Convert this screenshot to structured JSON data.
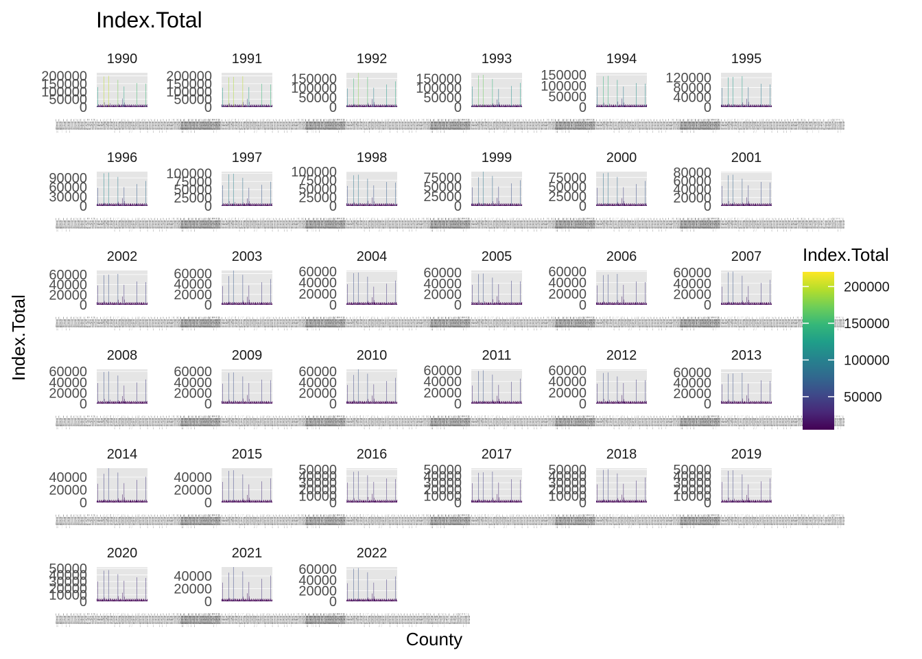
{
  "chart_data": {
    "type": "bar",
    "title": "Index.Total",
    "xlabel": "County",
    "ylabel": "Index.Total",
    "facet_by": "year",
    "facet_columns": 6,
    "x_categories_note": "",
    "x_tick_label_text": "Cayuga Chautauqua Chemung Chenango Clinton Columbia Cortland Delaware Dutchess Erie Essex Franklin Fulton Genesee Greene Hamilton Herkimer Jefferson Kings Lewis Livingston Madison Monroe Montgomery Nassau New York Niagara Oneida Onondaga Ontario Orange Orleans Oswego Otsego Putnam Queens Rensselaer Richmond Rockland Saratoga Schenectady Schoharie Schuyler Seneca St. Lawrence Steuben Suffolk Sullivan Tioga Tompkins Ulster",
    "legend": {
      "title": "Index.Total",
      "type": "continuous",
      "palette": "viridis",
      "min": 5000,
      "max": 220000,
      "ticks": [
        "50000",
        "100000",
        "150000",
        "200000"
      ],
      "tick_values": [
        50000,
        100000,
        150000,
        200000
      ],
      "position": "right"
    },
    "bar_profile": [
      0.02,
      0.02,
      0.02,
      0.6,
      0.02,
      0.02,
      0.02,
      0.02,
      0.02,
      0.02,
      0.02,
      0.02,
      0.02,
      0.02,
      0.02,
      0.02,
      0.02,
      0.02,
      0.02,
      0.02,
      0.02,
      0.02,
      0.95,
      0.08,
      0.02,
      0.02,
      0.02,
      0.02,
      0.02,
      0.02,
      0.02,
      0.02,
      0.02,
      0.02,
      0.02,
      0.02,
      1.0,
      0.02,
      0.02,
      0.02,
      0.02,
      0.05,
      0.02,
      0.02,
      0.02,
      0.02,
      0.02,
      0.02,
      0.02,
      0.02,
      0.02,
      0.02,
      0.02,
      0.02,
      0.02,
      0.02,
      0.02,
      0.02,
      0.02,
      0.02,
      0.02,
      0.02,
      0.02,
      0.02,
      0.02,
      0.9,
      0.1,
      0.02,
      0.02,
      0.02,
      0.02,
      0.02,
      0.02,
      0.02,
      0.02,
      0.02,
      0.02,
      0.02,
      0.02,
      0.25,
      0.02,
      0.02,
      0.02,
      0.02,
      0.6,
      0.15,
      0.02,
      0.02,
      0.02,
      0.02,
      0.02,
      0.02,
      0.02,
      0.02,
      0.02,
      0.02,
      0.02,
      0.02,
      0.02,
      0.02,
      0.02,
      0.02,
      0.02,
      0.02,
      0.02,
      0.02,
      0.02,
      0.02,
      0.02,
      0.02,
      0.02,
      0.02,
      0.02,
      0.02,
      0.02,
      0.02,
      0.02,
      0.02,
      0.02,
      0.02,
      0.02,
      0.02,
      0.02,
      0.02,
      0.7,
      0.02,
      0.02,
      0.02,
      0.02,
      0.02,
      0.02,
      0.02,
      0.02,
      0.02,
      0.02,
      0.02,
      0.02,
      0.02,
      0.02,
      0.02,
      0.02,
      0.02,
      0.02,
      0.02,
      0.02,
      0.02,
      0.02,
      0.02,
      0.02,
      0.02,
      0.02,
      0.75,
      0.02,
      0.02,
      0.02,
      0.02,
      0.02
    ],
    "facets": [
      {
        "year": "1990",
        "max": 220000,
        "ticks": [
          "0",
          "50000",
          "100000",
          "150000",
          "200000"
        ],
        "tick_values": [
          0,
          50000,
          100000,
          150000,
          200000
        ]
      },
      {
        "year": "1991",
        "max": 220000,
        "ticks": [
          "0",
          "50000",
          "100000",
          "150000",
          "200000"
        ],
        "tick_values": [
          0,
          50000,
          100000,
          150000,
          200000
        ]
      },
      {
        "year": "1992",
        "max": 180000,
        "ticks": [
          "0",
          "50000",
          "100000",
          "150000"
        ],
        "tick_values": [
          0,
          50000,
          100000,
          150000
        ]
      },
      {
        "year": "1993",
        "max": 180000,
        "ticks": [
          "0",
          "50000",
          "100000",
          "150000"
        ],
        "tick_values": [
          0,
          50000,
          100000,
          150000
        ]
      },
      {
        "year": "1994",
        "max": 160000,
        "ticks": [
          "0",
          "50000",
          "100000",
          "150000"
        ],
        "tick_values": [
          0,
          50000,
          100000,
          150000
        ]
      },
      {
        "year": "1995",
        "max": 140000,
        "ticks": [
          "0",
          "40000",
          "80000",
          "120000"
        ],
        "tick_values": [
          0,
          40000,
          80000,
          120000
        ]
      },
      {
        "year": "1996",
        "max": 110000,
        "ticks": [
          "0",
          "30000",
          "60000",
          "90000"
        ],
        "tick_values": [
          0,
          30000,
          60000,
          90000
        ]
      },
      {
        "year": "1997",
        "max": 105000,
        "ticks": [
          "0",
          "25000",
          "50000",
          "75000",
          "100000"
        ],
        "tick_values": [
          0,
          25000,
          50000,
          75000,
          100000
        ]
      },
      {
        "year": "1998",
        "max": 100000,
        "ticks": [
          "0",
          "25000",
          "50000",
          "75000",
          "100000"
        ],
        "tick_values": [
          0,
          25000,
          50000,
          75000,
          100000
        ]
      },
      {
        "year": "1999",
        "max": 90000,
        "ticks": [
          "0",
          "25000",
          "50000",
          "75000"
        ],
        "tick_values": [
          0,
          25000,
          50000,
          75000
        ]
      },
      {
        "year": "2000",
        "max": 90000,
        "ticks": [
          "0",
          "25000",
          "50000",
          "75000"
        ],
        "tick_values": [
          0,
          25000,
          50000,
          75000
        ]
      },
      {
        "year": "2001",
        "max": 82000,
        "ticks": [
          "0",
          "20000",
          "40000",
          "60000",
          "80000"
        ],
        "tick_values": [
          0,
          20000,
          40000,
          60000,
          80000
        ]
      },
      {
        "year": "2002",
        "max": 68000,
        "ticks": [
          "0",
          "20000",
          "40000",
          "60000"
        ],
        "tick_values": [
          0,
          20000,
          40000,
          60000
        ]
      },
      {
        "year": "2003",
        "max": 66000,
        "ticks": [
          "0",
          "20000",
          "40000",
          "60000"
        ],
        "tick_values": [
          0,
          20000,
          40000,
          60000
        ]
      },
      {
        "year": "2004",
        "max": 62000,
        "ticks": [
          "0",
          "20000",
          "40000",
          "60000"
        ],
        "tick_values": [
          0,
          20000,
          40000,
          60000
        ]
      },
      {
        "year": "2005",
        "max": 64000,
        "ticks": [
          "0",
          "20000",
          "40000",
          "60000"
        ],
        "tick_values": [
          0,
          20000,
          40000,
          60000
        ]
      },
      {
        "year": "2006",
        "max": 62000,
        "ticks": [
          "0",
          "20000",
          "40000",
          "60000"
        ],
        "tick_values": [
          0,
          20000,
          40000,
          60000
        ]
      },
      {
        "year": "2007",
        "max": 64000,
        "ticks": [
          "0",
          "20000",
          "40000",
          "60000"
        ],
        "tick_values": [
          0,
          20000,
          40000,
          60000
        ]
      },
      {
        "year": "2008",
        "max": 64000,
        "ticks": [
          "0",
          "20000",
          "40000",
          "60000"
        ],
        "tick_values": [
          0,
          20000,
          40000,
          60000
        ]
      },
      {
        "year": "2009",
        "max": 64000,
        "ticks": [
          "0",
          "20000",
          "40000",
          "60000"
        ],
        "tick_values": [
          0,
          20000,
          40000,
          60000
        ]
      },
      {
        "year": "2010",
        "max": 64000,
        "ticks": [
          "0",
          "20000",
          "40000",
          "60000"
        ],
        "tick_values": [
          0,
          20000,
          40000,
          60000
        ]
      },
      {
        "year": "2011",
        "max": 62000,
        "ticks": [
          "0",
          "20000",
          "40000",
          "60000"
        ],
        "tick_values": [
          0,
          20000,
          40000,
          60000
        ]
      },
      {
        "year": "2012",
        "max": 62000,
        "ticks": [
          "0",
          "20000",
          "40000",
          "60000"
        ],
        "tick_values": [
          0,
          20000,
          40000,
          60000
        ]
      },
      {
        "year": "2013",
        "max": 66000,
        "ticks": [
          "0",
          "20000",
          "40000",
          "60000"
        ],
        "tick_values": [
          0,
          20000,
          40000,
          60000
        ]
      },
      {
        "year": "2014",
        "max": 54000,
        "ticks": [
          "0",
          "20000",
          "40000"
        ],
        "tick_values": [
          0,
          20000,
          40000
        ]
      },
      {
        "year": "2015",
        "max": 54000,
        "ticks": [
          "0",
          "20000",
          "40000"
        ],
        "tick_values": [
          0,
          20000,
          40000
        ]
      },
      {
        "year": "2016",
        "max": 52000,
        "ticks": [
          "0",
          "10000",
          "20000",
          "30000",
          "40000",
          "50000"
        ],
        "tick_values": [
          0,
          10000,
          20000,
          30000,
          40000,
          50000
        ]
      },
      {
        "year": "2017",
        "max": 52000,
        "ticks": [
          "0",
          "10000",
          "20000",
          "30000",
          "40000",
          "50000"
        ],
        "tick_values": [
          0,
          10000,
          20000,
          30000,
          40000,
          50000
        ]
      },
      {
        "year": "2018",
        "max": 52000,
        "ticks": [
          "0",
          "10000",
          "20000",
          "30000",
          "40000",
          "50000"
        ],
        "tick_values": [
          0,
          10000,
          20000,
          30000,
          40000,
          50000
        ]
      },
      {
        "year": "2019",
        "max": 52000,
        "ticks": [
          "0",
          "10000",
          "20000",
          "30000",
          "40000",
          "50000"
        ],
        "tick_values": [
          0,
          10000,
          20000,
          30000,
          40000,
          50000
        ]
      },
      {
        "year": "2020",
        "max": 52000,
        "ticks": [
          "0",
          "10000",
          "20000",
          "30000",
          "40000",
          "50000"
        ],
        "tick_values": [
          0,
          10000,
          20000,
          30000,
          40000,
          50000
        ]
      },
      {
        "year": "2021",
        "max": 54000,
        "ticks": [
          "0",
          "20000",
          "40000"
        ],
        "tick_values": [
          0,
          20000,
          40000
        ]
      },
      {
        "year": "2022",
        "max": 64000,
        "ticks": [
          "0",
          "20000",
          "40000",
          "60000"
        ],
        "tick_values": [
          0,
          20000,
          40000,
          60000
        ]
      }
    ]
  }
}
